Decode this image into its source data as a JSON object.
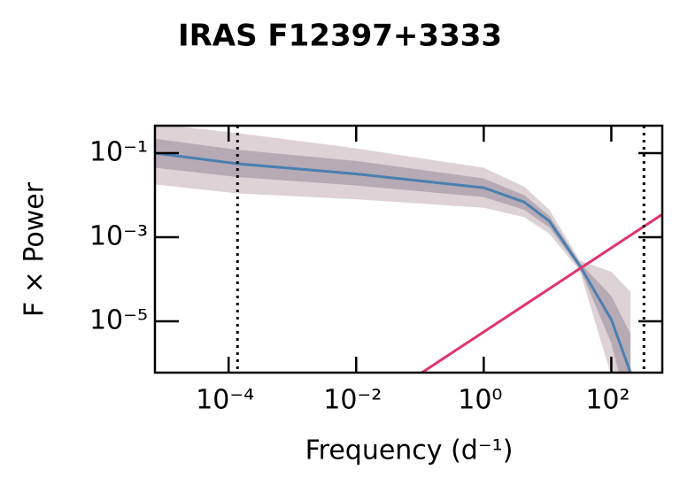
{
  "chart_data": {
    "type": "line",
    "title": "IRAS F12397+3333",
    "xlabel": "Frequency (d⁻¹)",
    "ylabel": "F × Power",
    "log_x": true,
    "log_y": true,
    "xlim": [
      7e-06,
      630
    ],
    "ylim": [
      6e-07,
      0.45
    ],
    "xticks": [
      {
        "value": 0.0001,
        "label": "10⁻⁴"
      },
      {
        "value": 0.01,
        "label": "10⁻²"
      },
      {
        "value": 1,
        "label": "10⁰"
      },
      {
        "value": 100,
        "label": "10²"
      }
    ],
    "yticks": [
      {
        "value": 0.1,
        "label": "10⁻¹"
      },
      {
        "value": 0.001,
        "label": "10⁻³"
      },
      {
        "value": 1e-05,
        "label": "10⁻⁵"
      }
    ],
    "x": [
      7e-06,
      0.000138,
      0.01,
      1,
      4.3,
      10.7,
      32,
      100,
      200
    ],
    "series": [
      {
        "color": "#4a7fb0",
        "values": [
          0.1,
          0.056,
          0.032,
          0.015,
          0.0069,
          0.0024,
          0.00021,
          1.1e-05,
          6e-07
        ]
      }
    ],
    "bands": [
      {
        "color": "#8e6a73",
        "lower": [
          0.018,
          0.011,
          0.008,
          0.005,
          0.003,
          0.0012,
          0.00016,
          5e-07,
          1e-08
        ],
        "upper": [
          0.5,
          0.3,
          0.13,
          0.045,
          0.016,
          0.0045,
          0.00028,
          0.00015,
          5e-05
        ]
      },
      {
        "color": "#5e4f6e",
        "lower": [
          0.045,
          0.027,
          0.017,
          0.009,
          0.0045,
          0.0017,
          0.00018,
          3e-06,
          5e-08
        ],
        "upper": [
          0.22,
          0.12,
          0.065,
          0.025,
          0.01,
          0.0032,
          0.00025,
          4e-05,
          5e-06
        ]
      }
    ],
    "noise_line": {
      "color": "#e0356e",
      "x": [
        0.1,
        630
      ],
      "values": [
        5.6e-07,
        0.0035
      ]
    },
    "vlines": [
      0.000138,
      325
    ]
  }
}
